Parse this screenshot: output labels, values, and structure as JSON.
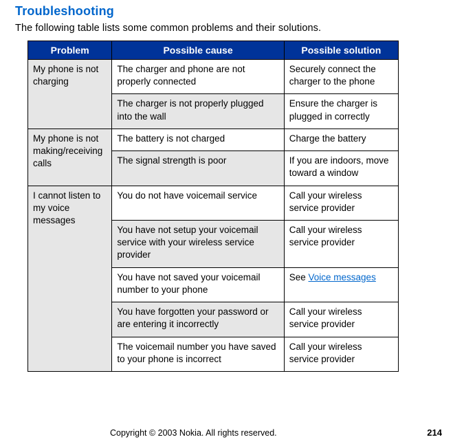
{
  "heading": "Troubleshooting",
  "intro": "The following table lists some common problems and their solutions.",
  "table": {
    "headers": {
      "problem": "Problem",
      "cause": "Possible cause",
      "solution": "Possible solution"
    },
    "rows": [
      {
        "problem": "My phone is not charging",
        "problem_rowspan": 2,
        "cause": "The charger and phone are not properly connected",
        "solution": "Securely connect the charger to the phone",
        "shade": "white"
      },
      {
        "cause": "The charger is not properly plugged into the wall",
        "solution": "Ensure the charger is plugged in correctly",
        "shade": "alt"
      },
      {
        "problem": "My phone is not making/receiving calls",
        "problem_rowspan": 2,
        "cause": "The battery is not charged",
        "solution": "Charge the battery",
        "shade": "white"
      },
      {
        "cause": "The signal strength is poor",
        "solution": "If you are indoors, move toward a window",
        "shade": "alt"
      },
      {
        "problem": "I cannot listen to my voice messages",
        "problem_rowspan": 5,
        "cause": "You do not have voicemail service",
        "solution": "Call your wireless service provider",
        "shade": "white"
      },
      {
        "cause": "You have not setup your voicemail service with your wireless service provider",
        "solution": "Call your wireless service provider",
        "shade": "alt"
      },
      {
        "cause": "You have not saved your voicemail number to your phone",
        "solution_prefix": "See ",
        "solution_link": "Voice messages",
        "shade": "white"
      },
      {
        "cause": "You have forgotten your password or are entering it incorrectly",
        "solution": "Call your wireless service provider",
        "shade": "alt"
      },
      {
        "cause": "The voicemail number you have saved to your phone is incorrect",
        "solution": "Call your wireless service provider",
        "shade": "white"
      }
    ]
  },
  "footer": {
    "copyright": "Copyright © 2003 Nokia. All rights reserved.",
    "page_number": "214"
  },
  "colors": {
    "heading": "#0066cc",
    "header_bg": "#003399",
    "header_fg": "#ffffff",
    "alt_bg": "#e6e6e6",
    "link": "#0066cc",
    "border": "#000000"
  }
}
